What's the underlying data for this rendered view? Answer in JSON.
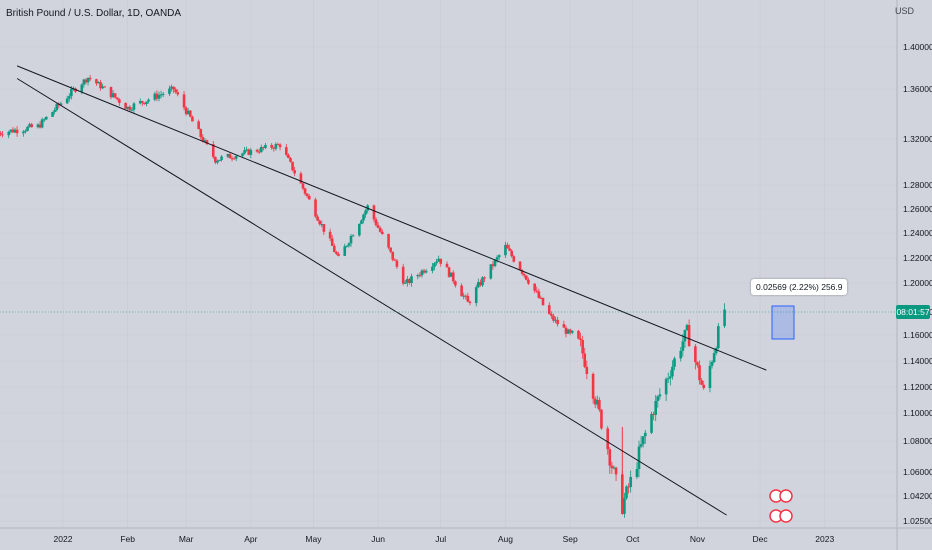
{
  "header": {
    "title": "British Pound / U.S. Dollar, 1D, OANDA",
    "currency": "USD"
  },
  "last_price_badge": "08:01:57",
  "measure_label": "0.02569 (2.22%) 256.9",
  "colors": {
    "up": "#089981",
    "down": "#f23645",
    "background": "#d1d4dc",
    "trendline": "#131722",
    "grid": "#c7cad2"
  },
  "chart_data": {
    "type": "candlestick",
    "title": "British Pound / U.S. Dollar, 1D, OANDA",
    "y_ticks": [
      "1.40000",
      "1.36000",
      "1.32000",
      "1.28000",
      "1.26000",
      "1.24000",
      "1.22000",
      "1.20000",
      "1.18000",
      "1.16000",
      "1.14000",
      "1.12000",
      "1.10000",
      "1.08000",
      "1.06000",
      "1.04200",
      "1.02500"
    ],
    "x_ticks": [
      "2022",
      "Feb",
      "Mar",
      "Apr",
      "May",
      "Jun",
      "Jul",
      "Aug",
      "Sep",
      "Oct",
      "Nov",
      "Dec",
      "2023"
    ],
    "x_range": [
      "2021-12-01",
      "2023-01-10"
    ],
    "last_close": 1.1822,
    "range_high": 1.375,
    "range_low": 1.035,
    "trendlines": [
      {
        "name": "",
        "from": [
          "2021-12-10",
          1.382
        ],
        "to": [
          "2022-12-04",
          1.133
        ]
      },
      {
        "name": "",
        "from": [
          "2021-12-10",
          1.37
        ],
        "to": [
          "2022-11-15",
          1.029
        ]
      }
    ],
    "ohlc_key_points": [
      [
        "2021-12-01",
        1.325
      ],
      [
        "2021-12-20",
        1.33
      ],
      [
        "2022-01-13",
        1.371
      ],
      [
        "2022-02-01",
        1.345
      ],
      [
        "2022-02-23",
        1.36
      ],
      [
        "2022-03-15",
        1.302
      ],
      [
        "2022-04-15",
        1.315
      ],
      [
        "2022-05-13",
        1.219
      ],
      [
        "2022-05-27",
        1.262
      ],
      [
        "2022-06-14",
        1.199
      ],
      [
        "2022-06-30",
        1.22
      ],
      [
        "2022-07-14",
        1.186
      ],
      [
        "2022-08-01",
        1.229
      ],
      [
        "2022-08-23",
        1.175
      ],
      [
        "2022-09-06",
        1.152
      ],
      [
        "2022-09-26",
        1.035
      ],
      [
        "2022-10-11",
        1.103
      ],
      [
        "2022-10-27",
        1.163
      ],
      [
        "2022-11-04",
        1.116
      ],
      [
        "2022-11-14",
        1.182
      ]
    ]
  }
}
